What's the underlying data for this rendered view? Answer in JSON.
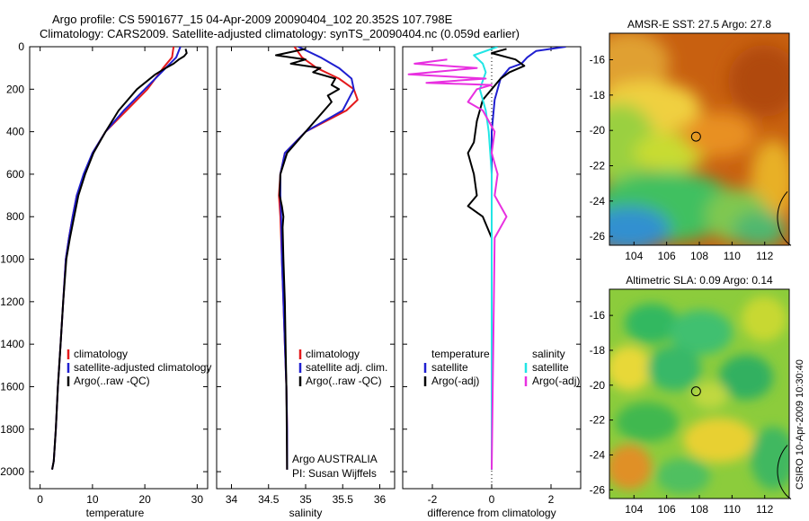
{
  "title_line1": "Argo profile: CS 5901677_15 04-Apr-2009 20090404_102 20.352S 107.798E",
  "title_line2": "Climatology: CARS2009. Satellite-adjusted climatology: synTS_20090404.nc (0.059d earlier)",
  "side_label": "CSIRO 10-Apr-2009 10:30:40",
  "colors": {
    "climatology": "#e41a1c",
    "satellite": "#1f1fd0",
    "argo": "#000000",
    "satellite_salinity": "#22e5e5",
    "argo_salinity": "#e830e0"
  },
  "chart_data": [
    {
      "type": "line",
      "id": "temperature",
      "xlabel": "temperature",
      "ylabel": "",
      "xlim": [
        -2,
        32
      ],
      "ylim": [
        0,
        2080
      ],
      "y_reversed": true,
      "xticks": [
        0,
        10,
        20,
        30
      ],
      "yticks": [
        0,
        200,
        400,
        600,
        800,
        1000,
        1200,
        1400,
        1600,
        1800,
        2000
      ],
      "legend": [
        {
          "label": "climatology",
          "series": "climatology"
        },
        {
          "label": "satellite-adjusted climatology",
          "series": "satellite"
        },
        {
          "label": "Argo(..raw -QC)",
          "series": "argo"
        }
      ],
      "series": [
        {
          "name": "climatology",
          "color_key": "climatology",
          "x": [
            25.5,
            25.2,
            23.5,
            20.5,
            16.5,
            12.5,
            10.0,
            8.5,
            7.0,
            6.2,
            5.5,
            4.9,
            4.4,
            3.9,
            3.4,
            3.0,
            2.6,
            2.3
          ],
          "y": [
            0,
            50,
            100,
            200,
            300,
            400,
            500,
            600,
            700,
            800,
            900,
            1000,
            1200,
            1400,
            1600,
            1800,
            1950,
            1990
          ]
        },
        {
          "name": "satellite-adjusted climatology",
          "color_key": "satellite",
          "x": [
            26.8,
            26.0,
            24.0,
            20.0,
            16.0,
            12.5,
            10.0,
            8.3,
            7.0,
            6.2,
            5.5,
            4.9,
            4.4,
            3.9,
            3.4,
            3.0,
            2.6,
            2.3
          ],
          "y": [
            0,
            50,
            100,
            200,
            300,
            400,
            500,
            600,
            700,
            800,
            900,
            1000,
            1200,
            1400,
            1600,
            1800,
            1950,
            1990
          ]
        },
        {
          "name": "Argo(..raw -QC)",
          "color_key": "argo",
          "x": [
            27.8,
            28.0,
            27.5,
            26.5,
            25.5,
            24.0,
            22.0,
            18.5,
            15.0,
            12.5,
            10.2,
            8.6,
            7.3,
            6.5,
            5.7,
            5.0,
            4.4,
            3.9,
            3.4,
            3.0,
            2.6,
            2.3
          ],
          "y": [
            10,
            30,
            45,
            60,
            80,
            100,
            130,
            200,
            300,
            400,
            500,
            600,
            700,
            800,
            900,
            1000,
            1200,
            1400,
            1600,
            1800,
            1950,
            1990
          ]
        }
      ]
    },
    {
      "type": "line",
      "id": "salinity",
      "xlabel": "salinity",
      "ylabel": "",
      "xlim": [
        33.8,
        36.2
      ],
      "ylim": [
        0,
        2080
      ],
      "y_reversed": true,
      "xticks": [
        34,
        34.5,
        35,
        35.5,
        36
      ],
      "yticks": [
        0,
        200,
        400,
        600,
        800,
        1000,
        1200,
        1400,
        1600,
        1800,
        2000
      ],
      "legend": [
        {
          "label": "climatology",
          "series": "climatology"
        },
        {
          "label": "satellite adj. clim.",
          "series": "satellite"
        },
        {
          "label": "Argo(..raw -QC)",
          "series": "argo"
        }
      ],
      "annotations": [
        "Argo AUSTRALIA",
        "PI: Susan Wijffels"
      ],
      "series": [
        {
          "name": "climatology",
          "color_key": "climatology",
          "x": [
            34.85,
            34.95,
            35.15,
            35.45,
            35.65,
            35.7,
            35.55,
            35.0,
            34.72,
            34.66,
            34.64,
            34.66,
            34.68,
            34.7,
            34.72,
            34.74,
            34.75,
            34.75
          ],
          "y": [
            0,
            50,
            100,
            150,
            200,
            250,
            300,
            400,
            500,
            600,
            700,
            800,
            1000,
            1200,
            1400,
            1600,
            1800,
            1990
          ]
        },
        {
          "name": "satellite adj. clim.",
          "color_key": "satellite",
          "x": [
            34.9,
            35.2,
            35.45,
            35.62,
            35.65,
            35.5,
            35.0,
            34.72,
            34.66,
            34.66,
            34.67,
            34.68,
            34.7,
            34.72,
            34.74,
            34.75,
            34.75
          ],
          "y": [
            0,
            50,
            100,
            150,
            200,
            300,
            400,
            500,
            600,
            700,
            800,
            1000,
            1200,
            1400,
            1600,
            1800,
            1990
          ]
        },
        {
          "name": "Argo(..raw -QC)",
          "color_key": "argo",
          "x": [
            35.0,
            34.6,
            35.0,
            34.8,
            35.2,
            35.1,
            35.4,
            35.35,
            35.45,
            35.3,
            35.35,
            35.0,
            34.75,
            34.66,
            34.65,
            34.68,
            34.7,
            34.69,
            34.7,
            34.72,
            34.73,
            34.74,
            34.75
          ],
          "y": [
            10,
            40,
            60,
            80,
            100,
            120,
            150,
            180,
            200,
            230,
            260,
            400,
            500,
            600,
            700,
            750,
            800,
            850,
            1000,
            1200,
            1400,
            1600,
            1990
          ]
        }
      ]
    },
    {
      "type": "line",
      "id": "difference",
      "xlabel": "difference from climatology",
      "ylabel": "",
      "xlim": [
        -3,
        3
      ],
      "ylim": [
        0,
        2080
      ],
      "y_reversed": true,
      "xticks": [
        -2,
        0,
        2
      ],
      "yticks": [
        0,
        200,
        400,
        600,
        800,
        1000,
        1200,
        1400,
        1600,
        1800,
        2000
      ],
      "zero_line": 0,
      "legend": [
        {
          "label": "temperature",
          "series": null
        },
        {
          "label": "satellite",
          "series": "temp_satellite"
        },
        {
          "label": "Argo(-adj)",
          "series": "temp_argo"
        },
        {
          "label": "salinity",
          "series": null
        },
        {
          "label": "satellite",
          "series": "sal_satellite"
        },
        {
          "label": "Argo(-adj)",
          "series": "sal_argo"
        }
      ],
      "series": [
        {
          "name": "temp_satellite",
          "color_key": "satellite",
          "x": [
            2.5,
            1.5,
            1.2,
            1.0,
            0.6,
            0.3,
            0.1,
            0.0,
            0.0,
            0.0,
            0.0,
            0.0
          ],
          "y": [
            0,
            20,
            50,
            80,
            100,
            150,
            250,
            400,
            600,
            800,
            1200,
            1990
          ]
        },
        {
          "name": "temp_argo",
          "color_key": "argo",
          "x": [
            0.5,
            0.0,
            0.8,
            1.1,
            0.6,
            0.3,
            0.0,
            -0.3,
            -0.5,
            -0.6,
            -0.8,
            -0.7,
            -0.6,
            -0.5,
            -0.8,
            -0.3,
            0.0,
            0.0
          ],
          "y": [
            10,
            30,
            60,
            90,
            120,
            150,
            200,
            250,
            350,
            450,
            500,
            550,
            600,
            700,
            750,
            800,
            900,
            1990
          ]
        },
        {
          "name": "sal_satellite",
          "color_key": "satellite_salinity",
          "x": [
            0.2,
            -0.6,
            -0.3,
            -0.2,
            -0.4,
            -0.2,
            -0.1,
            -0.05,
            0.0,
            0.0,
            0.0,
            0.0
          ],
          "y": [
            0,
            40,
            80,
            120,
            200,
            300,
            400,
            500,
            600,
            800,
            1200,
            1990
          ]
        },
        {
          "name": "sal_argo",
          "color_key": "argo_salinity",
          "x": [
            -1.5,
            -2.6,
            -0.5,
            -2.8,
            -0.2,
            -2.2,
            0.0,
            -0.5,
            -0.8,
            -0.3,
            0.1,
            0.0,
            0.2,
            0.1,
            0.5,
            0.1,
            0.0
          ],
          "y": [
            60,
            80,
            100,
            130,
            150,
            170,
            180,
            200,
            260,
            300,
            400,
            500,
            600,
            700,
            800,
            900,
            1990
          ]
        }
      ]
    },
    {
      "type": "heatmap",
      "id": "sst_map",
      "title": "AMSR-E SST: 27.5 Argo: 27.8",
      "xlim": [
        102.5,
        113.5
      ],
      "ylim": [
        -26.5,
        -14.5
      ],
      "xticks": [
        104,
        106,
        108,
        110,
        112
      ],
      "yticks": [
        -16,
        -18,
        -20,
        -22,
        -24,
        -26
      ],
      "xticklabels": [
        "104",
        "106",
        "108",
        "110",
        "112"
      ],
      "yticklabels": [
        "-16",
        "-18",
        "-20",
        "-22",
        "-24",
        "-26"
      ],
      "float_position": {
        "lon": 107.798,
        "lat": -20.352
      }
    },
    {
      "type": "heatmap",
      "id": "sla_map",
      "title": "Altimetric SLA: 0.09 Argo: 0.14",
      "xlim": [
        102.5,
        113.5
      ],
      "ylim": [
        -26.5,
        -14.5
      ],
      "xticks": [
        104,
        106,
        108,
        110,
        112
      ],
      "yticks": [
        -16,
        -18,
        -20,
        -22,
        -24,
        -26
      ],
      "xticklabels": [
        "104",
        "106",
        "108",
        "110",
        "112"
      ],
      "yticklabels": [
        "-16",
        "-18",
        "-20",
        "-22",
        "-24",
        "-26"
      ],
      "float_position": {
        "lon": 107.798,
        "lat": -20.352
      }
    }
  ]
}
